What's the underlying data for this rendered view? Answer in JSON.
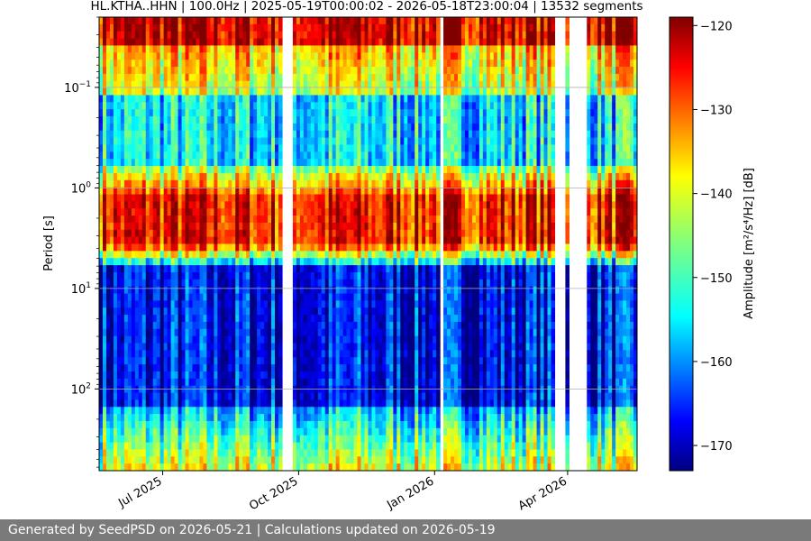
{
  "chart_data": {
    "type": "heatmap",
    "title": "HL.KTHA..HHN | 100.0Hz | 2025-05-19T00:00:02 - 2026-05-18T23:00:04 | 13532 segments",
    "ylabel": "Period [s]",
    "y_scale": "log",
    "y_inverted": true,
    "ylim_seconds": [
      0.02,
      650
    ],
    "y_ticks": [
      {
        "value": 0.1,
        "base": "10",
        "exp": "−1"
      },
      {
        "value": 1,
        "base": "10",
        "exp": "0"
      },
      {
        "value": 10,
        "base": "10",
        "exp": "1"
      },
      {
        "value": 100,
        "base": "10",
        "exp": "2"
      }
    ],
    "xlim": [
      "2025-05-19",
      "2026-05-18"
    ],
    "x_ticks": [
      {
        "date": "2025-07-01",
        "label": "Jul 2025"
      },
      {
        "date": "2025-10-01",
        "label": "Oct 2025"
      },
      {
        "date": "2026-01-01",
        "label": "Jan 2026"
      },
      {
        "date": "2026-04-01",
        "label": "Apr 2026"
      }
    ],
    "grid": true,
    "colormap": "jet",
    "colorbar": {
      "label": "Amplitude [m²/s⁴/Hz] [dB]",
      "range": [
        -173,
        -119
      ],
      "ticks": [
        -120,
        -130,
        -140,
        -150,
        -160,
        -170
      ]
    },
    "data_gaps": [
      [
        "2025-09-20",
        "2025-09-28"
      ],
      [
        "2026-01-05",
        "2026-01-07"
      ],
      [
        "2026-03-23",
        "2026-03-30"
      ],
      [
        "2026-04-02",
        "2026-04-14"
      ]
    ]
  },
  "footer": {
    "text": "Generated by SeedPSD on 2026-05-21 | Calculations updated on 2026-05-19"
  }
}
